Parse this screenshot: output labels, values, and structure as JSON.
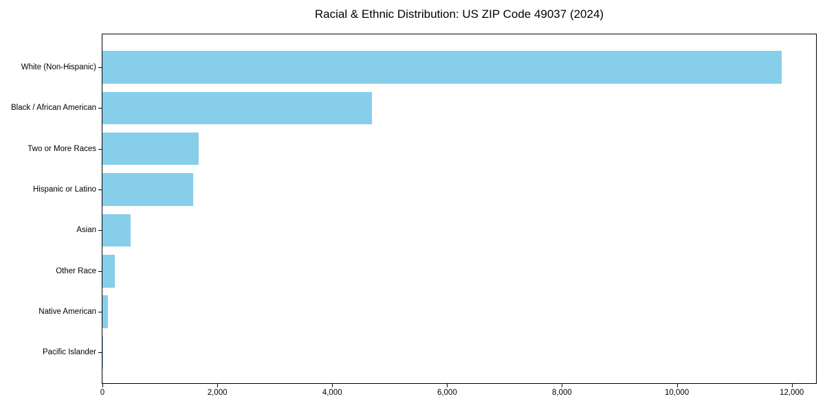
{
  "chart_data": {
    "type": "bar",
    "orientation": "horizontal",
    "title": "Racial & Ethnic Distribution: US ZIP Code 49037 (2024)",
    "categories": [
      "White (Non-Hispanic)",
      "Black / African American",
      "Two or More Races",
      "Hispanic or Latino",
      "Asian",
      "Other Race",
      "Native American",
      "Pacific Islander"
    ],
    "values": [
      11830,
      4690,
      1670,
      1575,
      485,
      220,
      100,
      10
    ],
    "xlabel": "",
    "ylabel": "",
    "xlim": [
      0,
      12423
    ],
    "x_ticks": [
      0,
      2000,
      4000,
      6000,
      8000,
      10000,
      12000
    ],
    "x_tick_labels": [
      "0",
      "2,000",
      "4,000",
      "6,000",
      "8,000",
      "10,000",
      "12,000"
    ],
    "bar_color": "#87CEEB",
    "background_color": "#ffffff",
    "axis_color": "#000000",
    "grid": false,
    "legend": null
  }
}
